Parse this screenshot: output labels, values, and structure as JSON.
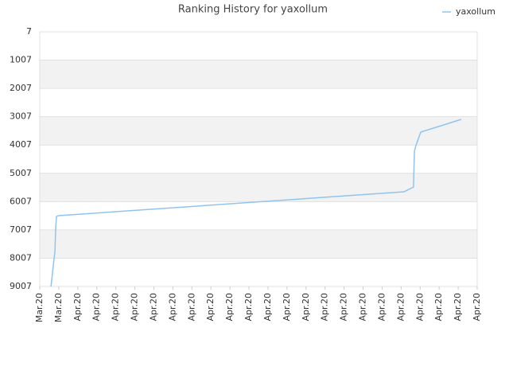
{
  "chart_data": {
    "type": "line",
    "title": "Ranking History for yaxollum",
    "xlim": [
      0,
      23
    ],
    "xticks": [
      {
        "value": 0,
        "label": "Mar.20"
      },
      {
        "value": 1,
        "label": "Mar.20"
      },
      {
        "value": 2,
        "label": "Apr.20"
      },
      {
        "value": 3,
        "label": "Apr.20"
      },
      {
        "value": 4,
        "label": "Apr.20"
      },
      {
        "value": 5,
        "label": "Apr.20"
      },
      {
        "value": 6,
        "label": "Apr.20"
      },
      {
        "value": 7,
        "label": "Apr.20"
      },
      {
        "value": 8,
        "label": "Apr.20"
      },
      {
        "value": 9,
        "label": "Apr.20"
      },
      {
        "value": 10,
        "label": "Apr.20"
      },
      {
        "value": 11,
        "label": "Apr.20"
      },
      {
        "value": 12,
        "label": "Apr.20"
      },
      {
        "value": 13,
        "label": "Apr.20"
      },
      {
        "value": 14,
        "label": "Apr.20"
      },
      {
        "value": 15,
        "label": "Apr.20"
      },
      {
        "value": 16,
        "label": "Apr.20"
      },
      {
        "value": 17,
        "label": "Apr.20"
      },
      {
        "value": 18,
        "label": "Apr.20"
      },
      {
        "value": 19,
        "label": "Apr.20"
      },
      {
        "value": 20,
        "label": "Apr.20"
      },
      {
        "value": 21,
        "label": "Apr.20"
      },
      {
        "value": 22,
        "label": "Apr.20"
      },
      {
        "value": 23,
        "label": "Apr.20"
      }
    ],
    "ylim": [
      7,
      9007
    ],
    "y_inverted": true,
    "yticks": [
      7,
      1007,
      2007,
      3007,
      4007,
      5007,
      6007,
      7007,
      8007,
      9007
    ],
    "grid": true,
    "legend": "top-right",
    "series": [
      {
        "name": "yaxollum",
        "color": "#90c4ee",
        "x": [
          0.59,
          0.8,
          0.84,
          0.88,
          1.0,
          19.15,
          19.65,
          19.7,
          19.78,
          20.03,
          20.83,
          22.16
        ],
        "values": [
          9007,
          7740,
          6897,
          6532,
          6503,
          5660,
          5491,
          4225,
          4028,
          3550,
          3382,
          3100
        ]
      }
    ]
  }
}
